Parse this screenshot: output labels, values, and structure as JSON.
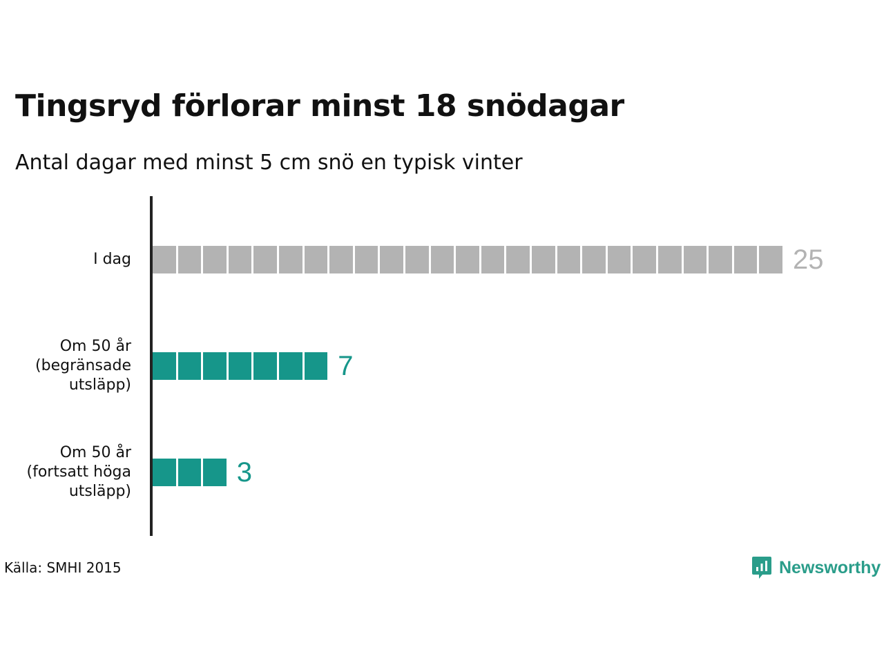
{
  "title": "Tingsryd förlorar minst 18 snödagar",
  "subtitle": "Antal dagar med minst 5 cm snö en typisk vinter",
  "source": "Källa: SMHI 2015",
  "logo": {
    "text": "Newsworthy",
    "icon": "newsworthy-chart-bubble-icon"
  },
  "colors": {
    "today": "#b3b3b3",
    "future": "#16968a",
    "axis": "#222222",
    "brand": "#2a9d8a"
  },
  "chart_data": {
    "type": "bar",
    "orientation": "horizontal",
    "style": "unit-squares",
    "title": "Tingsryd förlorar minst 18 snödagar",
    "subtitle": "Antal dagar med minst 5 cm snö en typisk vinter",
    "categories": [
      "I dag",
      "Om 50 år\n(begränsade\nutsläpp)",
      "Om 50 år\n(fortsatt höga\nutsläpp)"
    ],
    "values": [
      25,
      7,
      3
    ],
    "value_labels": [
      "25",
      "7",
      "3"
    ],
    "bar_colors": [
      "#b3b3b3",
      "#16968a",
      "#16968a"
    ],
    "xlim": [
      0,
      25
    ],
    "grid": false,
    "legend": "none"
  }
}
